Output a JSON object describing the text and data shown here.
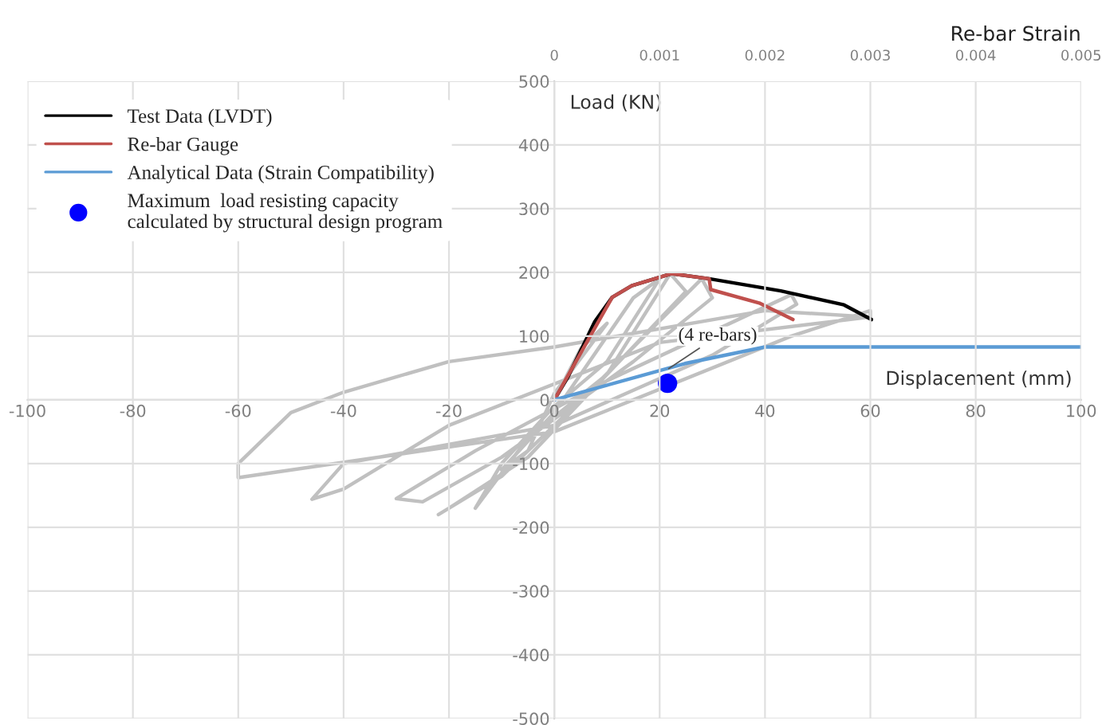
{
  "chart_data": {
    "type": "line",
    "xlabel": "Displacement (mm)",
    "ylabel": "Load (KN)",
    "x2label": "Re-bar Strain",
    "xlim": [
      -100,
      100
    ],
    "xticks": [
      -100,
      -80,
      -60,
      -40,
      -20,
      0,
      20,
      40,
      60,
      80,
      100
    ],
    "ylim": [
      -500,
      500
    ],
    "yticks": [
      -500,
      -400,
      -300,
      -200,
      -100,
      0,
      100,
      200,
      300,
      400,
      500
    ],
    "x2lim": [
      0,
      0.005
    ],
    "x2ticks": [
      0,
      0.001,
      0.002,
      0.003,
      0.004,
      0.005
    ],
    "grid": true,
    "legend": "top left",
    "series": [
      {
        "color": "#c0c0c0",
        "x": [
          0,
          5,
          10,
          0,
          -5,
          -10,
          0,
          10,
          15,
          20,
          10,
          0,
          -10,
          -15,
          -5,
          10,
          22,
          25,
          10,
          -5,
          -20,
          -22,
          -10,
          5,
          28,
          30,
          15,
          -10,
          -25,
          -30,
          -15,
          10,
          45,
          46,
          30,
          0,
          -40,
          -46,
          -40,
          -20,
          20,
          60,
          60,
          45,
          0,
          -60,
          -60,
          -50,
          -40,
          -20,
          0,
          40,
          60
        ],
        "values": [
          0,
          80,
          120,
          10,
          -80,
          -110,
          -20,
          100,
          160,
          190,
          60,
          -10,
          -100,
          -170,
          -60,
          40,
          198,
          170,
          40,
          -90,
          -170,
          -180,
          -120,
          0,
          190,
          160,
          60,
          -90,
          -160,
          -155,
          -80,
          30,
          165,
          150,
          70,
          -40,
          -100,
          -156,
          -140,
          -40,
          90,
          130,
          140,
          100,
          -50,
          -122,
          -100,
          -20,
          12,
          60,
          83,
          140,
          130
        ]
      },
      {
        "name": "Test Data (LVDT)",
        "color": "#000000",
        "x": [
          0,
          2.6,
          7.7,
          11,
          14.7,
          22.3,
          29.4,
          43,
          55,
          60.2
        ],
        "values": [
          0,
          36,
          123,
          161,
          179,
          198,
          190,
          171,
          149,
          126
        ]
      },
      {
        "name": "Re-bar Gauge",
        "color": "#c0504d",
        "x": [
          0,
          11,
          14.7,
          22.3,
          29.4,
          29.7,
          38.9,
          45.3
        ],
        "values": [
          0,
          161,
          179,
          198,
          190,
          173,
          152,
          126
        ]
      },
      {
        "name": "Analytical Data (Strain Compatibility)",
        "color": "#5b9bd5",
        "x": [
          0,
          24.8,
          40,
          100
        ],
        "values": [
          0,
          57,
          83,
          83
        ]
      },
      {
        "type": "scatter",
        "name": "Maximum  load resisting capacity\ncalculated by structural design program",
        "color": "#0000ff",
        "marker": "circle",
        "x": [
          21.5
        ],
        "values": [
          26
        ]
      }
    ],
    "annotations": [
      {
        "text": "(4 re-bars)",
        "x": 21,
        "y": 45
      }
    ]
  }
}
